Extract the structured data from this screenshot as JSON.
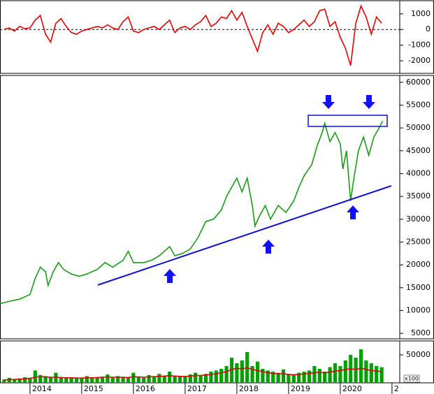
{
  "chart_data": [
    {
      "type": "line",
      "x": [
        2013.5,
        2013.6,
        2013.7,
        2013.8,
        2013.9,
        2014.0,
        2014.1,
        2014.2,
        2014.3,
        2014.4,
        2014.5,
        2014.6,
        2014.7,
        2014.8,
        2014.9,
        2015.0,
        2015.1,
        2015.2,
        2015.3,
        2015.4,
        2015.5,
        2015.6,
        2015.7,
        2015.8,
        2015.9,
        2016.0,
        2016.1,
        2016.2,
        2016.3,
        2016.4,
        2016.5,
        2016.6,
        2016.7,
        2016.8,
        2016.9,
        2017.0,
        2017.1,
        2017.2,
        2017.3,
        2017.4,
        2017.5,
        2017.6,
        2017.7,
        2017.8,
        2017.9,
        2018.0,
        2018.1,
        2018.2,
        2018.3,
        2018.4,
        2018.5,
        2018.6,
        2018.7,
        2018.8,
        2018.9,
        2019.0,
        2019.1,
        2019.2,
        2019.3,
        2019.4,
        2019.5,
        2019.6,
        2019.7,
        2019.8,
        2019.9,
        2020.0,
        2020.1,
        2020.2,
        2020.3,
        2020.4,
        2020.5,
        2020.6,
        2020.7,
        2020.8
      ],
      "series": [
        {
          "color": "#e00000",
          "values": [
            0,
            100,
            -100,
            200,
            50,
            100,
            600,
            900,
            -300,
            -800,
            400,
            700,
            200,
            -200,
            -300,
            -100,
            0,
            100,
            200,
            100,
            300,
            100,
            0,
            500,
            800,
            -100,
            -200,
            0,
            100,
            200,
            0,
            300,
            600,
            -200,
            100,
            200,
            0,
            300,
            500,
            900,
            200,
            400,
            800,
            700,
            1200,
            600,
            1100,
            200,
            -600,
            -1400,
            -200,
            300,
            -300,
            400,
            200,
            -200,
            0,
            300,
            600,
            200,
            500,
            1200,
            1300,
            200,
            500,
            -500,
            -1200,
            -2300,
            400,
            1500,
            800,
            -300,
            800,
            400
          ]
        }
      ],
      "xlim": [
        2013.42,
        2021.15
      ],
      "ylim": [
        -2800,
        1840
      ],
      "yticks": [
        1000,
        0,
        -1000,
        -2000
      ],
      "dashed_zero_line": true
    },
    {
      "type": "line",
      "x": [
        2013.42,
        2013.6,
        2013.8,
        2014.0,
        2014.1,
        2014.2,
        2014.3,
        2014.35,
        2014.45,
        2014.55,
        2014.65,
        2014.8,
        2014.95,
        2015.1,
        2015.3,
        2015.45,
        2015.6,
        2015.8,
        2015.9,
        2016.0,
        2016.2,
        2016.35,
        2016.5,
        2016.7,
        2016.8,
        2016.95,
        2017.1,
        2017.25,
        2017.4,
        2017.55,
        2017.7,
        2017.8,
        2017.9,
        2018.0,
        2018.1,
        2018.2,
        2018.3,
        2018.35,
        2018.45,
        2018.55,
        2018.65,
        2018.8,
        2018.95,
        2019.1,
        2019.2,
        2019.3,
        2019.45,
        2019.55,
        2019.65,
        2019.7,
        2019.8,
        2019.9,
        2020.0,
        2020.05,
        2020.12,
        2020.2,
        2020.25,
        2020.35,
        2020.45,
        2020.55,
        2020.65,
        2020.75,
        2020.82
      ],
      "series": [
        {
          "color": "#1a9a1a",
          "values": [
            11500,
            12000,
            12500,
            13500,
            17000,
            19500,
            18500,
            15500,
            18500,
            20500,
            19000,
            18000,
            17500,
            18000,
            19000,
            20500,
            19500,
            21000,
            23000,
            20500,
            20500,
            21000,
            22000,
            24000,
            22000,
            22500,
            23500,
            26000,
            29500,
            30000,
            32000,
            35000,
            37000,
            39000,
            36000,
            39000,
            33000,
            28500,
            31000,
            33000,
            30000,
            33000,
            31500,
            34000,
            37000,
            39500,
            42000,
            46000,
            49000,
            51000,
            47000,
            49000,
            46500,
            41000,
            45000,
            34000,
            38000,
            45000,
            48000,
            44000,
            48000,
            50000,
            51500
          ]
        }
      ],
      "xlim": [
        2013.42,
        2021.15
      ],
      "ylim": [
        3800,
        61500
      ],
      "yticks": [
        5000,
        10000,
        15000,
        20000,
        25000,
        30000,
        35000,
        40000,
        45000,
        50000,
        55000,
        60000
      ]
    },
    {
      "type": "bar",
      "x": [
        2013.5,
        2013.6,
        2013.7,
        2013.8,
        2013.9,
        2014.0,
        2014.1,
        2014.2,
        2014.3,
        2014.4,
        2014.5,
        2014.6,
        2014.7,
        2014.8,
        2014.9,
        2015.0,
        2015.1,
        2015.2,
        2015.3,
        2015.4,
        2015.5,
        2015.6,
        2015.7,
        2015.8,
        2015.9,
        2016.0,
        2016.1,
        2016.2,
        2016.3,
        2016.4,
        2016.5,
        2016.6,
        2016.7,
        2016.8,
        2016.9,
        2017.0,
        2017.1,
        2017.2,
        2017.3,
        2017.4,
        2017.5,
        2017.6,
        2017.7,
        2017.8,
        2017.9,
        2018.0,
        2018.1,
        2018.2,
        2018.3,
        2018.4,
        2018.5,
        2018.6,
        2018.7,
        2018.8,
        2018.9,
        2019.0,
        2019.1,
        2019.2,
        2019.3,
        2019.4,
        2019.5,
        2019.6,
        2019.7,
        2019.8,
        2019.9,
        2020.0,
        2020.1,
        2020.2,
        2020.3,
        2020.4,
        2020.5,
        2020.6,
        2020.7,
        2020.8
      ],
      "series": [
        {
          "type": "bar",
          "color": "#00a000",
          "values": [
            6000,
            9000,
            7000,
            8000,
            10000,
            9000,
            22000,
            14000,
            12000,
            10000,
            18000,
            9000,
            8000,
            10000,
            9000,
            8000,
            12000,
            9000,
            10000,
            11000,
            15000,
            9000,
            12000,
            10000,
            9000,
            18000,
            10000,
            9000,
            14000,
            11000,
            16000,
            12000,
            20000,
            13000,
            11000,
            12000,
            15000,
            18000,
            14000,
            16000,
            20000,
            22000,
            25000,
            30000,
            45000,
            35000,
            40000,
            55000,
            30000,
            38000,
            25000,
            22000,
            20000,
            18000,
            24000,
            16000,
            15000,
            18000,
            20000,
            22000,
            30000,
            25000,
            20000,
            28000,
            35000,
            30000,
            40000,
            50000,
            45000,
            60000,
            40000,
            35000,
            30000,
            28000
          ]
        },
        {
          "type": "line",
          "color": "#e00000",
          "values": [
            5000,
            5500,
            6000,
            6500,
            7000,
            8000,
            10000,
            11000,
            10500,
            10000,
            10000,
            9500,
            9000,
            9000,
            8500,
            8500,
            9000,
            9000,
            9500,
            10000,
            10500,
            10000,
            10000,
            10000,
            9500,
            11000,
            10500,
            10000,
            10500,
            11000,
            11500,
            12000,
            13000,
            12000,
            11500,
            11500,
            12000,
            13000,
            13000,
            14000,
            15000,
            16000,
            18000,
            20000,
            24000,
            26000,
            25000,
            27000,
            24000,
            22000,
            20000,
            18000,
            17000,
            16000,
            16500,
            15000,
            14500,
            15000,
            16000,
            17000,
            18000,
            18500,
            18000,
            19000,
            21000,
            22000,
            24000,
            25000,
            24000,
            26000,
            24000,
            22000,
            21000,
            20000
          ]
        }
      ],
      "xlim": [
        2013.42,
        2021.15
      ],
      "ylim": [
        0,
        75000
      ],
      "yticks": [
        50000
      ],
      "xticks": [
        2014,
        2015,
        2016,
        2017,
        2018,
        2019,
        2020,
        {
          "value": 2021,
          "label": "2"
        }
      ],
      "axis_note": "x100"
    }
  ]
}
